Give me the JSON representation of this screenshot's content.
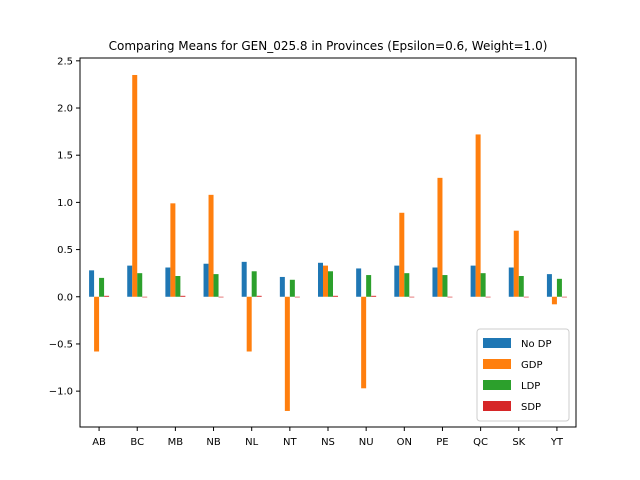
{
  "chart_data": {
    "type": "bar",
    "title": "Comparing Means for GEN_025.8 in Provinces (Epsilon=0.6, Weight=1.0)",
    "xlabel": "",
    "ylabel": "",
    "categories": [
      "AB",
      "BC",
      "MB",
      "NB",
      "NL",
      "NT",
      "NS",
      "NU",
      "ON",
      "PE",
      "QC",
      "SK",
      "YT"
    ],
    "series": [
      {
        "name": "No DP",
        "color": "#1f77b4",
        "values": [
          0.28,
          0.33,
          0.31,
          0.35,
          0.37,
          0.21,
          0.36,
          0.3,
          0.33,
          0.31,
          0.33,
          0.31,
          0.24
        ]
      },
      {
        "name": "GDP",
        "color": "#ff7f0e",
        "values": [
          -0.58,
          2.35,
          0.99,
          1.08,
          -0.58,
          -1.21,
          0.33,
          -0.97,
          0.89,
          1.26,
          1.72,
          0.7,
          -0.08
        ]
      },
      {
        "name": "LDP",
        "color": "#2ca02c",
        "values": [
          0.2,
          0.25,
          0.22,
          0.24,
          0.27,
          0.18,
          0.27,
          0.23,
          0.25,
          0.23,
          0.25,
          0.22,
          0.19
        ]
      },
      {
        "name": "SDP",
        "color": "#d62728",
        "values": [
          0.01,
          0.0,
          0.01,
          0.0,
          0.01,
          0.0,
          0.01,
          0.01,
          0.0,
          0.0,
          0.0,
          0.0,
          0.0
        ]
      }
    ],
    "yticks": [
      -1.0,
      -0.5,
      0.0,
      0.5,
      1.0,
      1.5,
      2.0,
      2.5
    ],
    "ytick_labels": [
      "−1.0",
      "−0.5",
      "0.0",
      "0.5",
      "1.0",
      "1.5",
      "2.0",
      "2.5"
    ],
    "ylim": [
      -1.38,
      2.53
    ],
    "grid": false,
    "legend_position": "lower-right"
  }
}
